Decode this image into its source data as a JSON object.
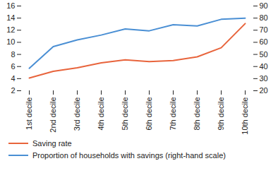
{
  "chart_data": {
    "type": "line",
    "categories": [
      "1st decile",
      "2nd decile",
      "3rd decile",
      "4th decile",
      "5th decile",
      "6th decile",
      "7th decile",
      "8th decile",
      "9th decile",
      "10th decile"
    ],
    "series": [
      {
        "name": "Saving rate",
        "color": "#e8643c",
        "values": [
          4.1,
          5.2,
          5.8,
          6.6,
          7.1,
          6.8,
          7.0,
          7.6,
          9.1,
          13.1
        ]
      },
      {
        "name": "Proportion of households with savings (right-hand scale)",
        "color": "#4a8fd4",
        "axis": "y2",
        "values": [
          38.5,
          56.5,
          62,
          66,
          71,
          69.5,
          74.5,
          73.5,
          79,
          80
        ]
      }
    ],
    "ylim": [
      2,
      16
    ],
    "yticks": [
      2,
      4,
      6,
      8,
      10,
      12,
      14,
      16
    ],
    "y2lim": [
      20,
      90
    ],
    "y2ticks": [
      20,
      30,
      40,
      50,
      60,
      70,
      80,
      90
    ],
    "grid": false,
    "legend": "bottom"
  }
}
